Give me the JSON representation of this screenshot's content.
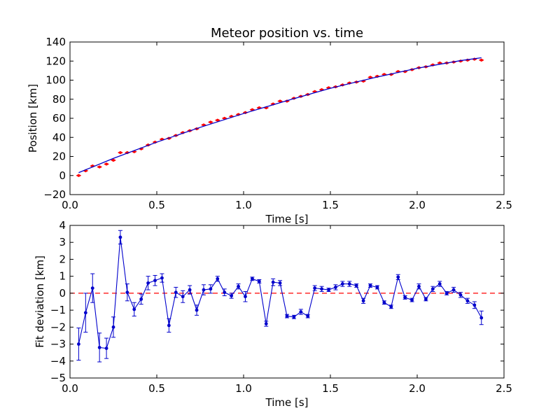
{
  "chart_data": [
    {
      "type": "scatter",
      "title": "Meteor position vs. time",
      "xlabel": "Time [s]",
      "ylabel": "Position [km]",
      "xlim": [
        0,
        2.5
      ],
      "ylim": [
        -20,
        140
      ],
      "xticks": [
        "0.0",
        "0.5",
        "1.0",
        "1.5",
        "2.0",
        "2.5"
      ],
      "yticks": [
        "−20",
        "0",
        "20",
        "40",
        "60",
        "80",
        "100",
        "120",
        "140"
      ],
      "grid": false,
      "series": [
        {
          "kind": "points",
          "color": "#ff0000",
          "x": [
            0.05,
            0.09,
            0.13,
            0.17,
            0.21,
            0.25,
            0.29,
            0.33,
            0.37,
            0.41,
            0.45,
            0.49,
            0.53,
            0.57,
            0.61,
            0.65,
            0.69,
            0.73,
            0.77,
            0.81,
            0.85,
            0.89,
            0.93,
            0.97,
            1.01,
            1.05,
            1.09,
            1.13,
            1.17,
            1.21,
            1.25,
            1.29,
            1.33,
            1.37,
            1.41,
            1.45,
            1.49,
            1.53,
            1.57,
            1.61,
            1.65,
            1.69,
            1.73,
            1.77,
            1.81,
            1.85,
            1.89,
            1.93,
            1.97,
            2.01,
            2.05,
            2.09,
            2.13,
            2.17,
            2.21,
            2.25,
            2.29,
            2.33,
            2.37
          ],
          "y": [
            0,
            5,
            10,
            9,
            12,
            16,
            24,
            24,
            25,
            28,
            32,
            35,
            38,
            39,
            42,
            45,
            47,
            49,
            53,
            56,
            58,
            60,
            62,
            64,
            66,
            69,
            71,
            71,
            75,
            78,
            78,
            81,
            83,
            85,
            88,
            90,
            92,
            93,
            95,
            97,
            98,
            99,
            103,
            104,
            106,
            106,
            109,
            109,
            111,
            113,
            114,
            116,
            118,
            118,
            119,
            120,
            121,
            122,
            121
          ]
        },
        {
          "kind": "fit-line",
          "color": "#0000cc",
          "x": [
            0.05,
            0.25,
            0.5,
            0.75,
            1.0,
            1.25,
            1.5,
            1.75,
            2.0,
            2.25,
            2.37
          ],
          "y": [
            3,
            18,
            35,
            50.5,
            65,
            78.5,
            91.5,
            102.5,
            112.5,
            120.5,
            123.5
          ]
        }
      ]
    },
    {
      "type": "line",
      "xlabel": "Time [s]",
      "ylabel": "Fit deviation [km]",
      "xlim": [
        0,
        2.5
      ],
      "ylim": [
        -5,
        4
      ],
      "xticks": [
        "0.0",
        "0.5",
        "1.0",
        "1.5",
        "2.0",
        "2.5"
      ],
      "yticks": [
        "−5",
        "−4",
        "−3",
        "−2",
        "−1",
        "0",
        "1",
        "2",
        "3",
        "4"
      ],
      "grid": false,
      "zero_line_color": "#ff0000",
      "series": [
        {
          "kind": "deviation",
          "color": "#0000cc",
          "x": [
            0.05,
            0.09,
            0.13,
            0.17,
            0.21,
            0.25,
            0.29,
            0.33,
            0.37,
            0.41,
            0.45,
            0.49,
            0.53,
            0.57,
            0.61,
            0.65,
            0.69,
            0.73,
            0.77,
            0.81,
            0.85,
            0.89,
            0.93,
            0.97,
            1.01,
            1.05,
            1.09,
            1.13,
            1.17,
            1.21,
            1.25,
            1.29,
            1.33,
            1.37,
            1.41,
            1.45,
            1.49,
            1.53,
            1.57,
            1.61,
            1.65,
            1.69,
            1.73,
            1.77,
            1.81,
            1.85,
            1.89,
            1.93,
            1.97,
            2.01,
            2.05,
            2.09,
            2.13,
            2.17,
            2.21,
            2.25,
            2.29,
            2.33,
            2.37
          ],
          "y": [
            -3.0,
            -1.15,
            0.3,
            -3.2,
            -3.25,
            -2.0,
            3.3,
            0.05,
            -0.95,
            -0.35,
            0.6,
            0.75,
            0.9,
            -1.9,
            0.05,
            -0.2,
            0.2,
            -1.0,
            0.2,
            0.25,
            0.85,
            0.05,
            -0.15,
            0.4,
            -0.2,
            0.85,
            0.7,
            -1.8,
            0.65,
            0.6,
            -1.35,
            -1.4,
            -1.1,
            -1.35,
            0.3,
            0.25,
            0.2,
            0.35,
            0.55,
            0.55,
            0.45,
            -0.45,
            0.45,
            0.35,
            -0.55,
            -0.8,
            0.95,
            -0.25,
            -0.4,
            0.4,
            -0.35,
            0.25,
            0.55,
            0.0,
            0.2,
            -0.1,
            -0.45,
            -0.7,
            -1.45
          ],
          "err": [
            0.95,
            1.15,
            0.85,
            0.85,
            0.6,
            0.6,
            0.4,
            0.5,
            0.4,
            0.3,
            0.4,
            0.3,
            0.25,
            0.4,
            0.3,
            0.35,
            0.25,
            0.3,
            0.3,
            0.25,
            0.15,
            0.2,
            0.15,
            0.15,
            0.3,
            0.1,
            0.1,
            0.15,
            0.2,
            0.15,
            0.1,
            0.1,
            0.15,
            0.1,
            0.15,
            0.15,
            0.1,
            0.15,
            0.15,
            0.15,
            0.1,
            0.15,
            0.1,
            0.1,
            0.1,
            0.1,
            0.15,
            0.1,
            0.1,
            0.15,
            0.1,
            0.15,
            0.15,
            0.1,
            0.15,
            0.15,
            0.15,
            0.2,
            0.4
          ]
        }
      ]
    }
  ]
}
